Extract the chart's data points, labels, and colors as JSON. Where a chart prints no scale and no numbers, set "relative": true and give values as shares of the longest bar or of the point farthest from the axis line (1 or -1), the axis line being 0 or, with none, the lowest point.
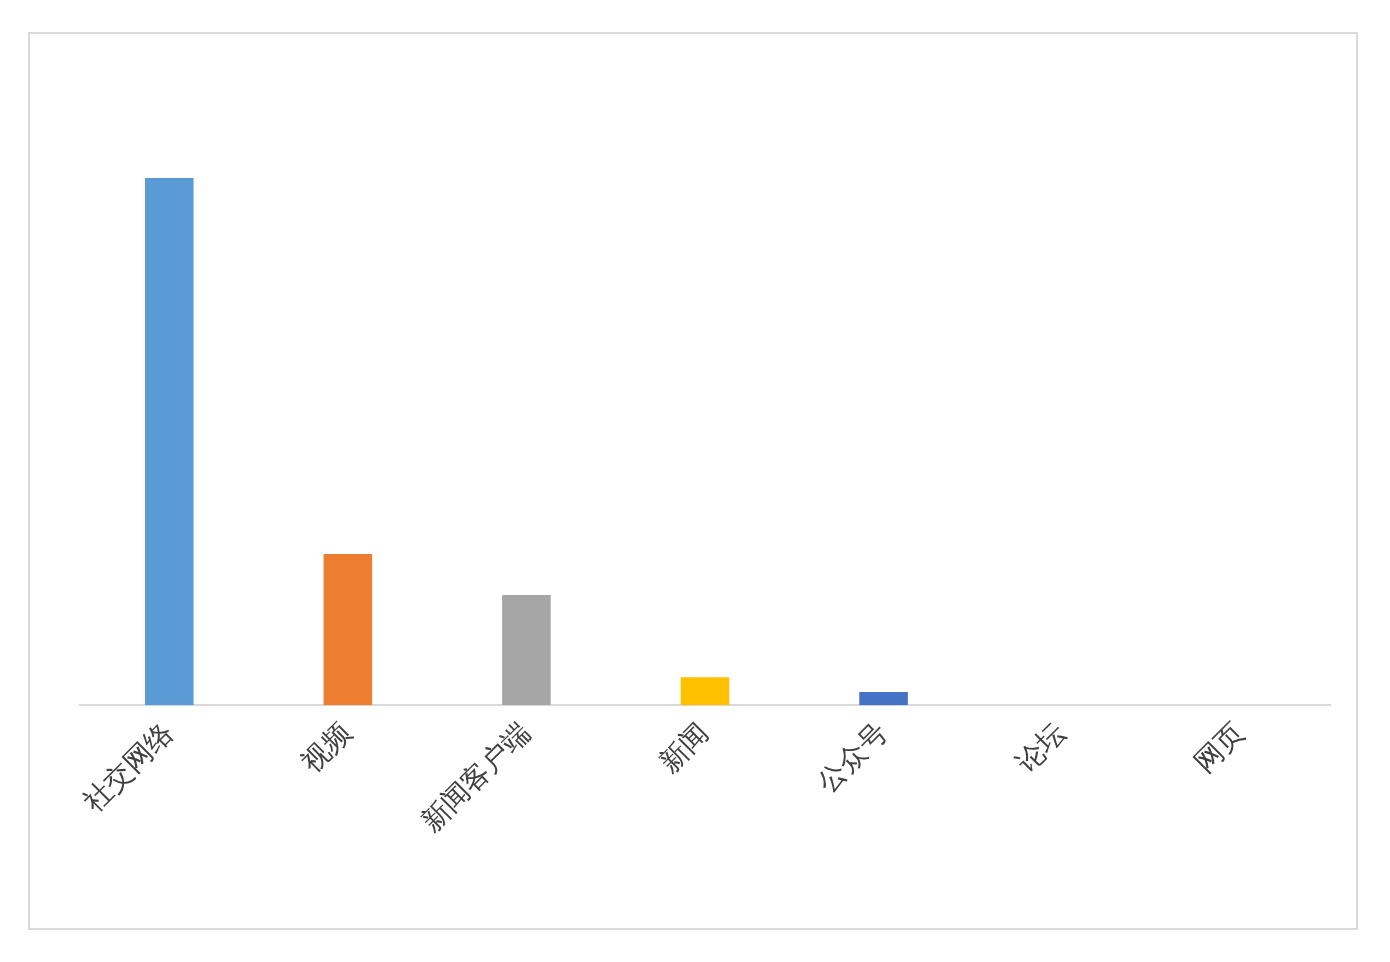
{
  "chart_data": {
    "type": "bar",
    "relative": true,
    "categories": [
      "社交网络",
      "视频",
      "新闻客户端",
      "新闻",
      "公众号",
      "论坛",
      "网页"
    ],
    "values": [
      1,
      0.287,
      0.209,
      0.053,
      0.025,
      0,
      0
    ],
    "colors": [
      "#5b9bd5",
      "#ed7d31",
      "#a5a5a5",
      "#ffc000",
      "#4472c4",
      "#70ad47",
      "#255e91"
    ],
    "legend": false,
    "grid": false
  }
}
